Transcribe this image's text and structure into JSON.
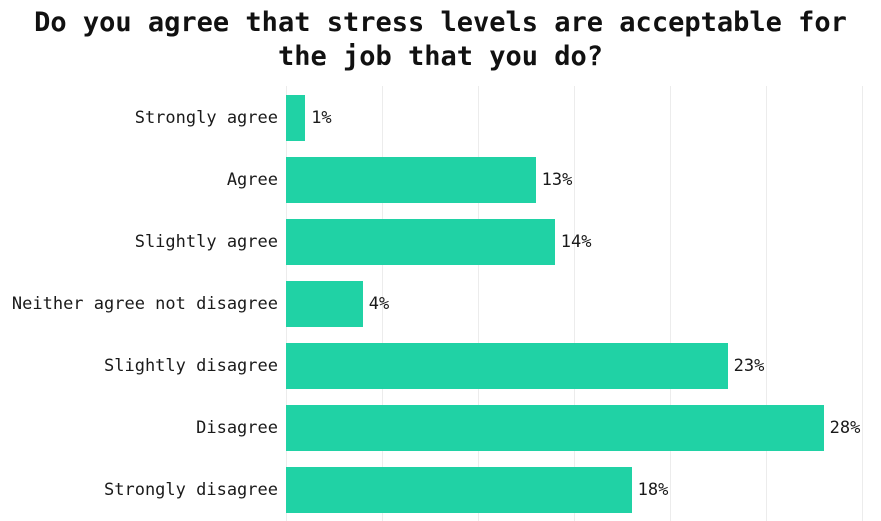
{
  "header": {
    "title_line1": "Do you agree that stress levels are acceptable for",
    "title_line2": "the job that you do?"
  },
  "chart_data": {
    "type": "bar",
    "orientation": "horizontal",
    "title": "Do you agree that stress levels are acceptable for the job that you do?",
    "categories": [
      "Strongly agree",
      "Agree",
      "Slightly agree",
      "Neither agree not disagree",
      "Slightly disagree",
      "Disagree",
      "Strongly disagree"
    ],
    "values": [
      1,
      13,
      14,
      4,
      23,
      28,
      18
    ],
    "value_labels": [
      "1%",
      "13%",
      "14%",
      "4%",
      "23%",
      "28%",
      "18%"
    ],
    "xlabel": "",
    "ylabel": "",
    "xlim": [
      0,
      31
    ],
    "gridline_ticks": [
      0,
      5,
      10,
      15,
      20,
      25,
      30
    ],
    "grid": "vertical-only",
    "legend": "none",
    "colors": {
      "bar": "#20d2a5",
      "gridline": "#ececec",
      "text": "#1a1a1a",
      "title": "#111111",
      "background": "#ffffff"
    }
  }
}
